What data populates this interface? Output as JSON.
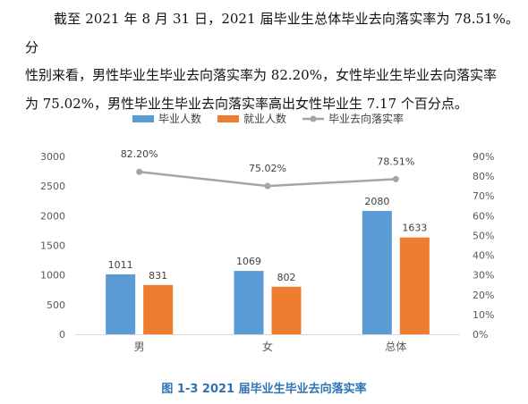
{
  "paragraph": {
    "line1": "截至 2021 年 8 月 31 日，2021 届毕业生总体毕业去向落实率为 78.51%。分",
    "line2": "性别来看，男性毕业生毕业去向落实率为 82.20%，女性毕业生毕业去向落实率",
    "line3": "为 75.02%，男性毕业生毕业去向落实率高出女性毕业生 7.17 个百分点。"
  },
  "caption": "图 1-3  2021 届毕业生毕业去向落实率",
  "chart_data": {
    "type": "bar",
    "categories": [
      "男",
      "女",
      "总体"
    ],
    "series": [
      {
        "name": "毕业人数",
        "type": "bar",
        "axis": "left",
        "color": "#5b9bd5",
        "values": [
          1011,
          1069,
          2080
        ]
      },
      {
        "name": "就业人数",
        "type": "bar",
        "axis": "left",
        "color": "#ed7d31",
        "values": [
          831,
          802,
          1633
        ]
      },
      {
        "name": "毕业去向落实率",
        "type": "line",
        "axis": "right",
        "color": "#a5a5a5",
        "values": [
          82.2,
          75.02,
          78.51
        ],
        "labels": [
          "82.20%",
          "75.02%",
          "78.51%"
        ]
      }
    ],
    "y_left": {
      "min": 0,
      "max": 3000,
      "ticks": [
        "0",
        "500",
        "1000",
        "1500",
        "2000",
        "2500",
        "3000"
      ]
    },
    "y_right": {
      "min": 0,
      "max": 90,
      "ticks": [
        "0%",
        "10%",
        "20%",
        "30%",
        "40%",
        "50%",
        "60%",
        "70%",
        "80%",
        "90%"
      ]
    },
    "legend_position": "top",
    "grid": false
  }
}
